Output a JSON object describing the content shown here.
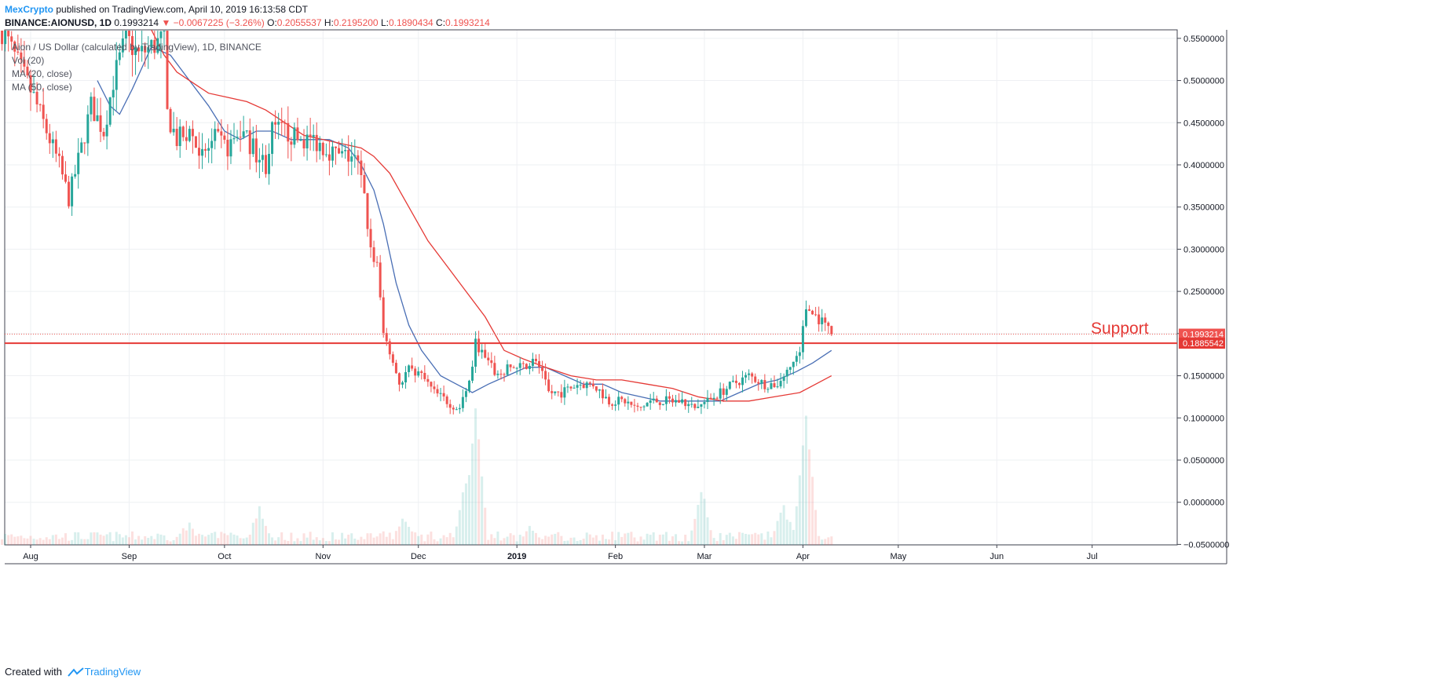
{
  "header": {
    "author": "MexCrypto",
    "published_text": "published on TradingView.com, April 10, 2019 16:13:58 CDT",
    "symbol": "BINANCE:AIONUSD, 1D",
    "last": "0.1993214",
    "change": "−0.0067225 (−3.26%)",
    "o_label": "O:",
    "o_val": "0.2055537",
    "h_label": "H:",
    "h_val": "0.2195200",
    "l_label": "L:",
    "l_val": "0.1890434",
    "c_label": "C:",
    "c_val": "0.1993214"
  },
  "legend": {
    "title": "Aion / US Dollar (calculated by TradingView), 1D, BINANCE",
    "vol": "Vol (20)",
    "ma20": "MA (20, close)",
    "ma50": "MA (50, close)"
  },
  "footer": {
    "created_with": "Created with",
    "brand": "TradingView"
  },
  "colors": {
    "up": "#26a69a",
    "down": "#ef5350",
    "ma20": "#4a6fb5",
    "ma50": "#e53935",
    "support": "#e53935",
    "author": "#2196f3"
  },
  "chart_data": {
    "type": "candlestick",
    "title": "Aion / US Dollar (calculated by TradingView), 1D, BINANCE",
    "x_ticks": [
      "Aug",
      "Sep",
      "Oct",
      "Nov",
      "Dec",
      "2019",
      "Feb",
      "Mar",
      "Apr",
      "May",
      "Jun",
      "Jul"
    ],
    "x_tick_dates": [
      "2018-08-01",
      "2018-09-01",
      "2018-10-01",
      "2018-11-01",
      "2018-12-01",
      "2019-01-01",
      "2019-02-01",
      "2019-03-01",
      "2019-04-01",
      "2019-05-01",
      "2019-06-01",
      "2019-07-01"
    ],
    "y_ticks": [
      "0.5500000",
      "0.5000000",
      "0.4500000",
      "0.4000000",
      "0.3500000",
      "0.3000000",
      "0.2500000",
      "0.2000000",
      "0.1500000",
      "0.1000000",
      "0.0500000",
      "0.0000000",
      "−0.0500000"
    ],
    "ylim": [
      -0.05,
      0.555
    ],
    "price_points": [
      [
        "2018-07-23",
        0.56
      ],
      [
        "2018-07-28",
        0.52
      ],
      [
        "2018-08-02",
        0.48
      ],
      [
        "2018-08-06",
        0.44
      ],
      [
        "2018-08-10",
        0.4
      ],
      [
        "2018-08-13",
        0.36
      ],
      [
        "2018-08-17",
        0.42
      ],
      [
        "2018-08-20",
        0.47
      ],
      [
        "2018-08-24",
        0.44
      ],
      [
        "2018-08-27",
        0.5
      ],
      [
        "2018-08-31",
        0.55
      ],
      [
        "2018-09-04",
        0.53
      ],
      [
        "2018-09-08",
        0.54
      ],
      [
        "2018-09-12",
        0.55
      ],
      [
        "2018-09-13",
        0.46
      ],
      [
        "2018-09-16",
        0.43
      ],
      [
        "2018-09-20",
        0.44
      ],
      [
        "2018-09-24",
        0.41
      ],
      [
        "2018-09-28",
        0.43
      ],
      [
        "2018-10-02",
        0.42
      ],
      [
        "2018-10-06",
        0.44
      ],
      [
        "2018-10-10",
        0.42
      ],
      [
        "2018-10-14",
        0.4
      ],
      [
        "2018-10-16",
        0.44
      ],
      [
        "2018-10-20",
        0.44
      ],
      [
        "2018-10-24",
        0.43
      ],
      [
        "2018-10-29",
        0.43
      ],
      [
        "2018-11-02",
        0.42
      ],
      [
        "2018-11-06",
        0.41
      ],
      [
        "2018-11-10",
        0.41
      ],
      [
        "2018-11-12",
        0.4
      ],
      [
        "2018-11-14",
        0.36
      ],
      [
        "2018-11-16",
        0.3
      ],
      [
        "2018-11-18",
        0.28
      ],
      [
        "2018-11-20",
        0.2
      ],
      [
        "2018-11-22",
        0.18
      ],
      [
        "2018-11-25",
        0.14
      ],
      [
        "2018-11-28",
        0.16
      ],
      [
        "2018-12-02",
        0.15
      ],
      [
        "2018-12-06",
        0.13
      ],
      [
        "2018-12-10",
        0.12
      ],
      [
        "2018-12-14",
        0.11
      ],
      [
        "2018-12-17",
        0.14
      ],
      [
        "2018-12-19",
        0.19
      ],
      [
        "2018-12-22",
        0.17
      ],
      [
        "2018-12-26",
        0.15
      ],
      [
        "2018-12-30",
        0.16
      ],
      [
        "2019-01-03",
        0.16
      ],
      [
        "2019-01-07",
        0.17
      ],
      [
        "2019-01-11",
        0.13
      ],
      [
        "2019-01-15",
        0.13
      ],
      [
        "2019-01-20",
        0.14
      ],
      [
        "2019-01-25",
        0.14
      ],
      [
        "2019-01-30",
        0.12
      ],
      [
        "2019-02-04",
        0.12
      ],
      [
        "2019-02-08",
        0.11
      ],
      [
        "2019-02-12",
        0.12
      ],
      [
        "2019-02-17",
        0.12
      ],
      [
        "2019-02-22",
        0.12
      ],
      [
        "2019-02-26",
        0.11
      ],
      [
        "2019-03-02",
        0.12
      ],
      [
        "2019-03-06",
        0.13
      ],
      [
        "2019-03-10",
        0.14
      ],
      [
        "2019-03-15",
        0.15
      ],
      [
        "2019-03-20",
        0.14
      ],
      [
        "2019-03-24",
        0.14
      ],
      [
        "2019-03-28",
        0.16
      ],
      [
        "2019-03-31",
        0.18
      ],
      [
        "2019-04-02",
        0.23
      ],
      [
        "2019-04-05",
        0.22
      ],
      [
        "2019-04-08",
        0.21
      ],
      [
        "2019-04-10",
        0.1993
      ]
    ],
    "series": [
      {
        "name": "MA (20, close)",
        "points": [
          [
            "2018-08-22",
            0.5
          ],
          [
            "2018-08-26",
            0.47
          ],
          [
            "2018-08-29",
            0.46
          ],
          [
            "2018-09-02",
            0.49
          ],
          [
            "2018-09-08",
            0.54
          ],
          [
            "2018-09-14",
            0.53
          ],
          [
            "2018-09-20",
            0.5
          ],
          [
            "2018-09-26",
            0.47
          ],
          [
            "2018-10-01",
            0.44
          ],
          [
            "2018-10-06",
            0.43
          ],
          [
            "2018-10-11",
            0.44
          ],
          [
            "2018-10-16",
            0.44
          ],
          [
            "2018-10-22",
            0.43
          ],
          [
            "2018-10-28",
            0.43
          ],
          [
            "2018-11-03",
            0.43
          ],
          [
            "2018-11-09",
            0.42
          ],
          [
            "2018-11-13",
            0.4
          ],
          [
            "2018-11-17",
            0.37
          ],
          [
            "2018-11-20",
            0.33
          ],
          [
            "2018-11-24",
            0.26
          ],
          [
            "2018-11-28",
            0.21
          ],
          [
            "2018-12-02",
            0.18
          ],
          [
            "2018-12-08",
            0.15
          ],
          [
            "2018-12-13",
            0.14
          ],
          [
            "2018-12-18",
            0.13
          ],
          [
            "2018-12-23",
            0.14
          ],
          [
            "2018-12-29",
            0.15
          ],
          [
            "2019-01-04",
            0.16
          ],
          [
            "2019-01-10",
            0.16
          ],
          [
            "2019-01-16",
            0.15
          ],
          [
            "2019-01-22",
            0.14
          ],
          [
            "2019-01-28",
            0.14
          ],
          [
            "2019-02-03",
            0.13
          ],
          [
            "2019-02-09",
            0.125
          ],
          [
            "2019-02-15",
            0.12
          ],
          [
            "2019-02-22",
            0.12
          ],
          [
            "2019-02-28",
            0.12
          ],
          [
            "2019-03-06",
            0.12
          ],
          [
            "2019-03-12",
            0.13
          ],
          [
            "2019-03-18",
            0.14
          ],
          [
            "2019-03-24",
            0.145
          ],
          [
            "2019-03-30",
            0.155
          ],
          [
            "2019-04-04",
            0.165
          ],
          [
            "2019-04-10",
            0.18
          ]
        ]
      },
      {
        "name": "MA (50, close)",
        "points": [
          [
            "2018-09-08",
            0.56
          ],
          [
            "2018-09-12",
            0.53
          ],
          [
            "2018-09-16",
            0.51
          ],
          [
            "2018-09-20",
            0.5
          ],
          [
            "2018-09-26",
            0.485
          ],
          [
            "2018-10-02",
            0.48
          ],
          [
            "2018-10-08",
            0.475
          ],
          [
            "2018-10-14",
            0.465
          ],
          [
            "2018-10-20",
            0.45
          ],
          [
            "2018-10-26",
            0.435
          ],
          [
            "2018-11-01",
            0.43
          ],
          [
            "2018-11-07",
            0.425
          ],
          [
            "2018-11-13",
            0.42
          ],
          [
            "2018-11-17",
            0.41
          ],
          [
            "2018-11-22",
            0.39
          ],
          [
            "2018-11-28",
            0.35
          ],
          [
            "2018-12-04",
            0.31
          ],
          [
            "2018-12-10",
            0.28
          ],
          [
            "2018-12-16",
            0.25
          ],
          [
            "2018-12-22",
            0.22
          ],
          [
            "2018-12-28",
            0.18
          ],
          [
            "2019-01-03",
            0.17
          ],
          [
            "2019-01-10",
            0.16
          ],
          [
            "2019-01-18",
            0.15
          ],
          [
            "2019-01-26",
            0.145
          ],
          [
            "2019-02-03",
            0.145
          ],
          [
            "2019-02-11",
            0.14
          ],
          [
            "2019-02-19",
            0.135
          ],
          [
            "2019-02-27",
            0.125
          ],
          [
            "2019-03-07",
            0.12
          ],
          [
            "2019-03-15",
            0.12
          ],
          [
            "2019-03-23",
            0.125
          ],
          [
            "2019-03-31",
            0.13
          ],
          [
            "2019-04-05",
            0.14
          ],
          [
            "2019-04-10",
            0.15
          ]
        ]
      }
    ],
    "last_price_label": "0.1993214",
    "last_price": 0.1993214,
    "support_label": "0.1885542",
    "support_price": 0.1885542,
    "annotation": "Support",
    "volume_peaks": [
      [
        "2018-09-20",
        0.02
      ],
      [
        "2018-10-12",
        0.04
      ],
      [
        "2018-11-20",
        0.01
      ],
      [
        "2018-11-26",
        0.025
      ],
      [
        "2018-12-16",
        0.07
      ],
      [
        "2018-12-19",
        0.16
      ],
      [
        "2019-01-05",
        0.02
      ],
      [
        "2019-02-28",
        0.06
      ],
      [
        "2019-03-26",
        0.04
      ],
      [
        "2019-04-02",
        0.15
      ]
    ],
    "grid": true
  }
}
